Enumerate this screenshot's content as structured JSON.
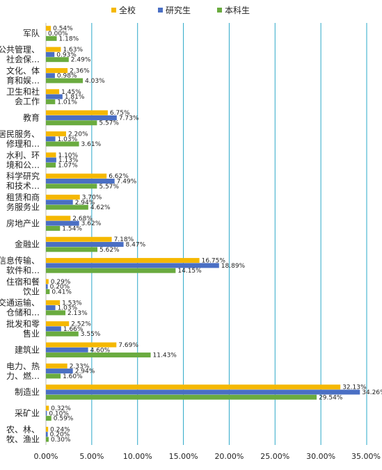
{
  "chart_data": {
    "type": "bar",
    "orientation": "horizontal",
    "categories": [
      "军队",
      "公共管理、\n社会保…",
      "文化、体\n育和娱…",
      "卫生和社\n会工作",
      "教育",
      "居民服务、\n修理和…",
      "水利、环\n境和公…",
      "科学研究\n和技术…",
      "租赁和商\n务服务业",
      "房地产业",
      "金融业",
      "信息传输、\n软件和…",
      "住宿和餐\n饮业",
      "交通运输、\n仓储和…",
      "批发和零\n售业",
      "建筑业",
      "电力、热\n力、燃…",
      "制造业",
      "采矿业",
      "农、林、\n牧、渔业"
    ],
    "series": [
      {
        "name": "全校",
        "color": "#f5b800",
        "values": [
          0.54,
          1.63,
          2.36,
          1.45,
          6.75,
          2.2,
          1.1,
          6.62,
          3.7,
          2.68,
          7.18,
          16.75,
          0.29,
          1.53,
          2.52,
          7.69,
          2.33,
          32.13,
          0.32,
          0.24
        ],
        "labels": [
          "0.54%",
          "1.63%",
          "2.36%",
          "1.45%",
          "6.75%",
          "2.20%",
          "1.10%",
          "6.62%",
          "3.70%",
          "2.68%",
          "7.18%",
          "16.75%",
          "0.29%",
          "1.53%",
          "2.52%",
          "7.69%",
          "2.33%",
          "32.13%",
          "0.32%",
          "0.24%"
        ]
      },
      {
        "name": "研究生",
        "color": "#4a6fc4",
        "values": [
          0.0,
          0.93,
          0.98,
          1.81,
          7.73,
          1.03,
          1.13,
          7.49,
          2.94,
          3.62,
          8.47,
          18.89,
          0.2,
          1.03,
          1.66,
          4.6,
          2.94,
          34.26,
          0.1,
          0.2
        ],
        "labels": [
          "0.00%",
          "0.93%",
          "0.98%",
          "1.81%",
          "7.73%",
          "1.03%",
          "1.13%",
          "7.49%",
          "2.94%",
          "3.62%",
          "8.47%",
          "18.89%",
          "0.20%",
          "1.03%",
          "1.66%",
          "4.60%",
          "2.94%",
          "34.26%",
          "0.10%",
          "0.20%"
        ]
      },
      {
        "name": "本科生",
        "color": "#6aab3f",
        "values": [
          1.18,
          2.49,
          4.03,
          1.01,
          5.57,
          3.61,
          1.07,
          5.57,
          4.62,
          1.54,
          5.62,
          14.15,
          0.41,
          2.13,
          3.55,
          11.43,
          1.6,
          29.54,
          0.59,
          0.3
        ],
        "labels": [
          "1.18%",
          "2.49%",
          "4.03%",
          "1.01%",
          "5.57%",
          "3.61%",
          "1.07%",
          "5.57%",
          "4.62%",
          "1.54%",
          "5.62%",
          "14.15%",
          "0.41%",
          "2.13%",
          "3.55%",
          "11.43%",
          "1.60%",
          "29.54%",
          "0.59%",
          "0.30%"
        ]
      }
    ],
    "x_ticks": [
      "0.00%",
      "5.00%",
      "10.00%",
      "15.00%",
      "20.00%",
      "25.00%",
      "30.00%",
      "35.00%"
    ],
    "xlim": [
      0,
      35
    ],
    "grid": "vertical",
    "grid_color": "#2aa8c8",
    "legend_position": "top"
  }
}
